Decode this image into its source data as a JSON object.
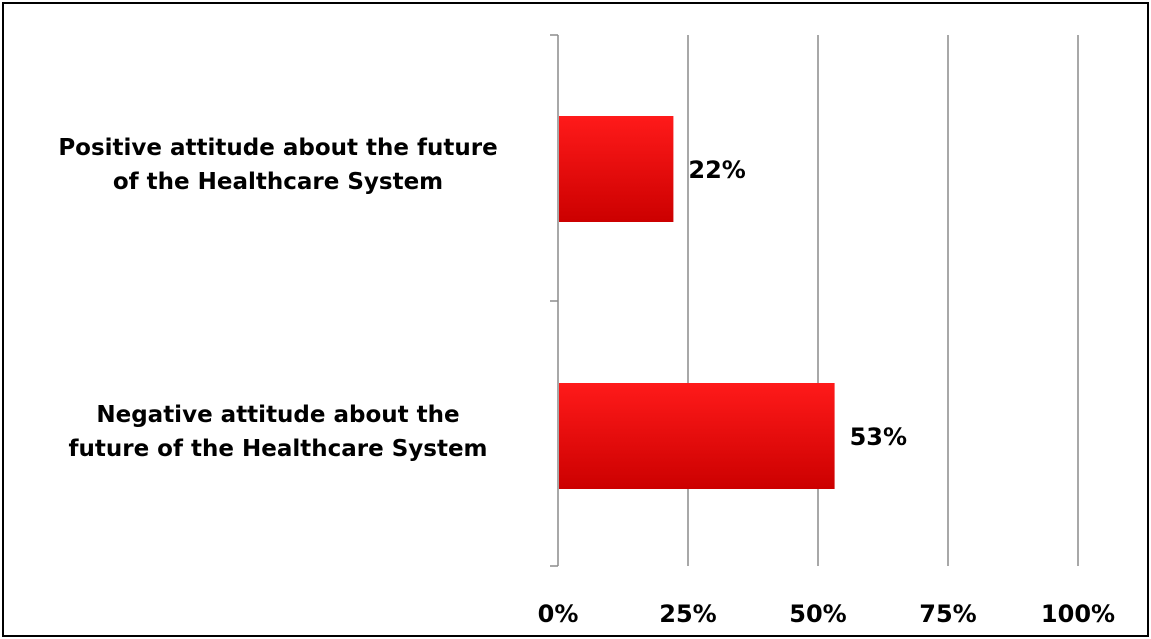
{
  "chart_data": {
    "type": "bar",
    "orientation": "horizontal",
    "title": "",
    "xlabel": "",
    "ylabel": "",
    "categories": [
      [
        "Positive attitude about the future",
        "of the Healthcare System"
      ],
      [
        "Negative attitude about the",
        "future of the Healthcare System"
      ]
    ],
    "values": [
      22,
      53
    ],
    "data_labels": [
      "22%",
      "53%"
    ],
    "xlim": [
      0,
      100
    ],
    "xticks": [
      0,
      25,
      50,
      75,
      100
    ],
    "xtick_labels": [
      "0%",
      "25%",
      "50%",
      "75%",
      "100%"
    ],
    "grid": true,
    "legend": "none",
    "bar_color": "#e60000",
    "bar_color_light": "#ff1a1a",
    "bar_color_dark": "#cc0000",
    "grid_color": "#8c8c8c"
  }
}
